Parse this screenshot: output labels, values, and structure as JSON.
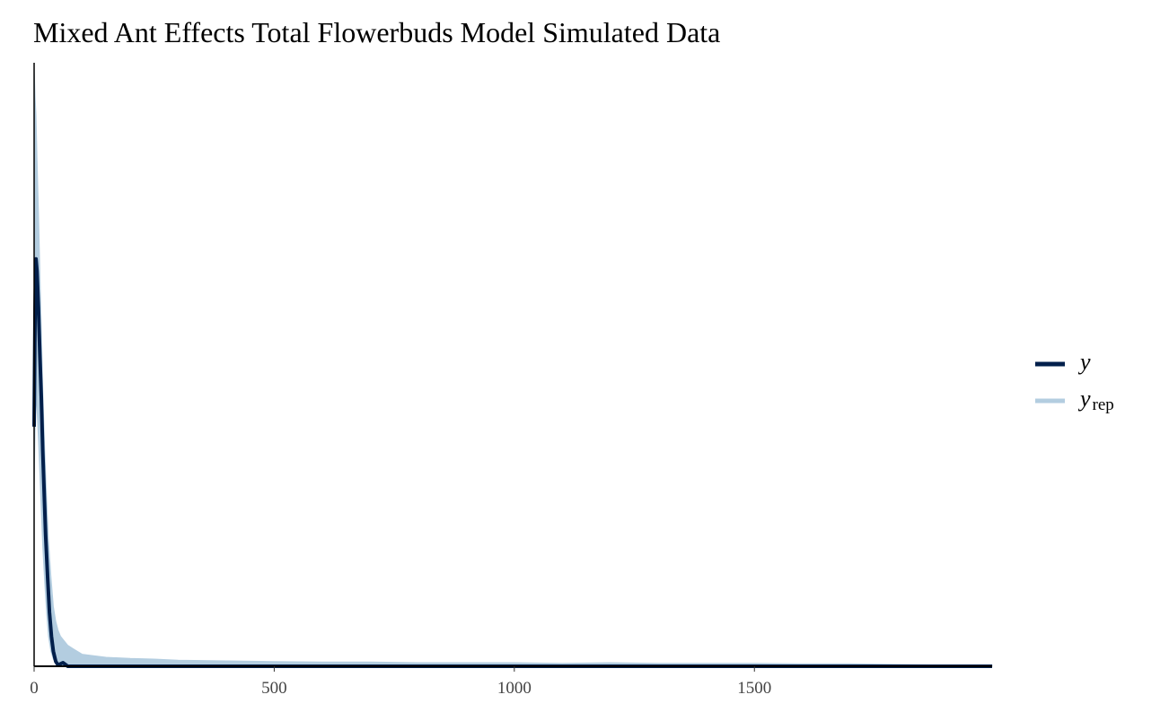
{
  "chart_data": {
    "type": "line",
    "title": "Mixed Ant Effects Total Flowerbuds Model Simulated Data",
    "xlabel": "",
    "ylabel": "",
    "xlim": [
      0,
      1995
    ],
    "ylim": [
      0,
      1.0
    ],
    "x_ticks": [
      0,
      500,
      1000,
      1500
    ],
    "y_ticks": [],
    "grid": false,
    "legend_position": "right",
    "colors": {
      "y": "#011f4b",
      "y_rep": "#b3cde0"
    },
    "legend": {
      "y_label": "y",
      "yrep_label": "y",
      "yrep_sub": "rep"
    },
    "series": [
      {
        "name": "y",
        "x": [
          0,
          2,
          4,
          6,
          9,
          12,
          15,
          18,
          21,
          24,
          28,
          32,
          36,
          40,
          45,
          50,
          55,
          60,
          65,
          70,
          80,
          100,
          200,
          500,
          1000,
          1500,
          1995
        ],
        "y": [
          0.4,
          0.6,
          0.68,
          0.66,
          0.6,
          0.52,
          0.45,
          0.36,
          0.29,
          0.22,
          0.15,
          0.09,
          0.05,
          0.025,
          0.008,
          0.002,
          0.004,
          0.006,
          0.003,
          0.0,
          0.0,
          0.0,
          0.0,
          0.0,
          0.0,
          0.0,
          0.0
        ]
      },
      {
        "name": "y_rep",
        "x": [
          0,
          2,
          4,
          6,
          9,
          12,
          15,
          18,
          22,
          26,
          30,
          35,
          40,
          45,
          50,
          55,
          60,
          70,
          80,
          90,
          100,
          120,
          150,
          200,
          250,
          300,
          400,
          500,
          600,
          700,
          800,
          900,
          1000,
          1100,
          1200,
          1300,
          1400,
          1500,
          1600,
          1700,
          1800,
          1900,
          1995
        ],
        "y_lower": [
          0.3,
          0.4,
          0.45,
          0.43,
          0.38,
          0.32,
          0.26,
          0.2,
          0.14,
          0.09,
          0.05,
          0.025,
          0.012,
          0.006,
          0.004,
          0.003,
          0.002,
          0.002,
          0.001,
          0.001,
          0.001,
          0.001,
          0.0,
          0.0,
          0.0,
          0.0,
          0.0,
          0.0,
          0.0,
          0.0,
          0.0,
          0.0,
          0.0,
          0.0,
          0.0,
          0.0,
          0.0,
          0.0,
          0.0,
          0.0,
          0.0,
          0.0,
          0.0
        ],
        "y_upper": [
          1.0,
          0.95,
          0.92,
          0.85,
          0.76,
          0.66,
          0.56,
          0.46,
          0.36,
          0.28,
          0.21,
          0.15,
          0.1,
          0.075,
          0.06,
          0.05,
          0.045,
          0.035,
          0.03,
          0.025,
          0.02,
          0.018,
          0.015,
          0.013,
          0.012,
          0.01,
          0.009,
          0.008,
          0.007,
          0.007,
          0.006,
          0.006,
          0.006,
          0.005,
          0.006,
          0.005,
          0.005,
          0.005,
          0.004,
          0.004,
          0.003,
          0.002,
          0.002
        ]
      }
    ]
  }
}
